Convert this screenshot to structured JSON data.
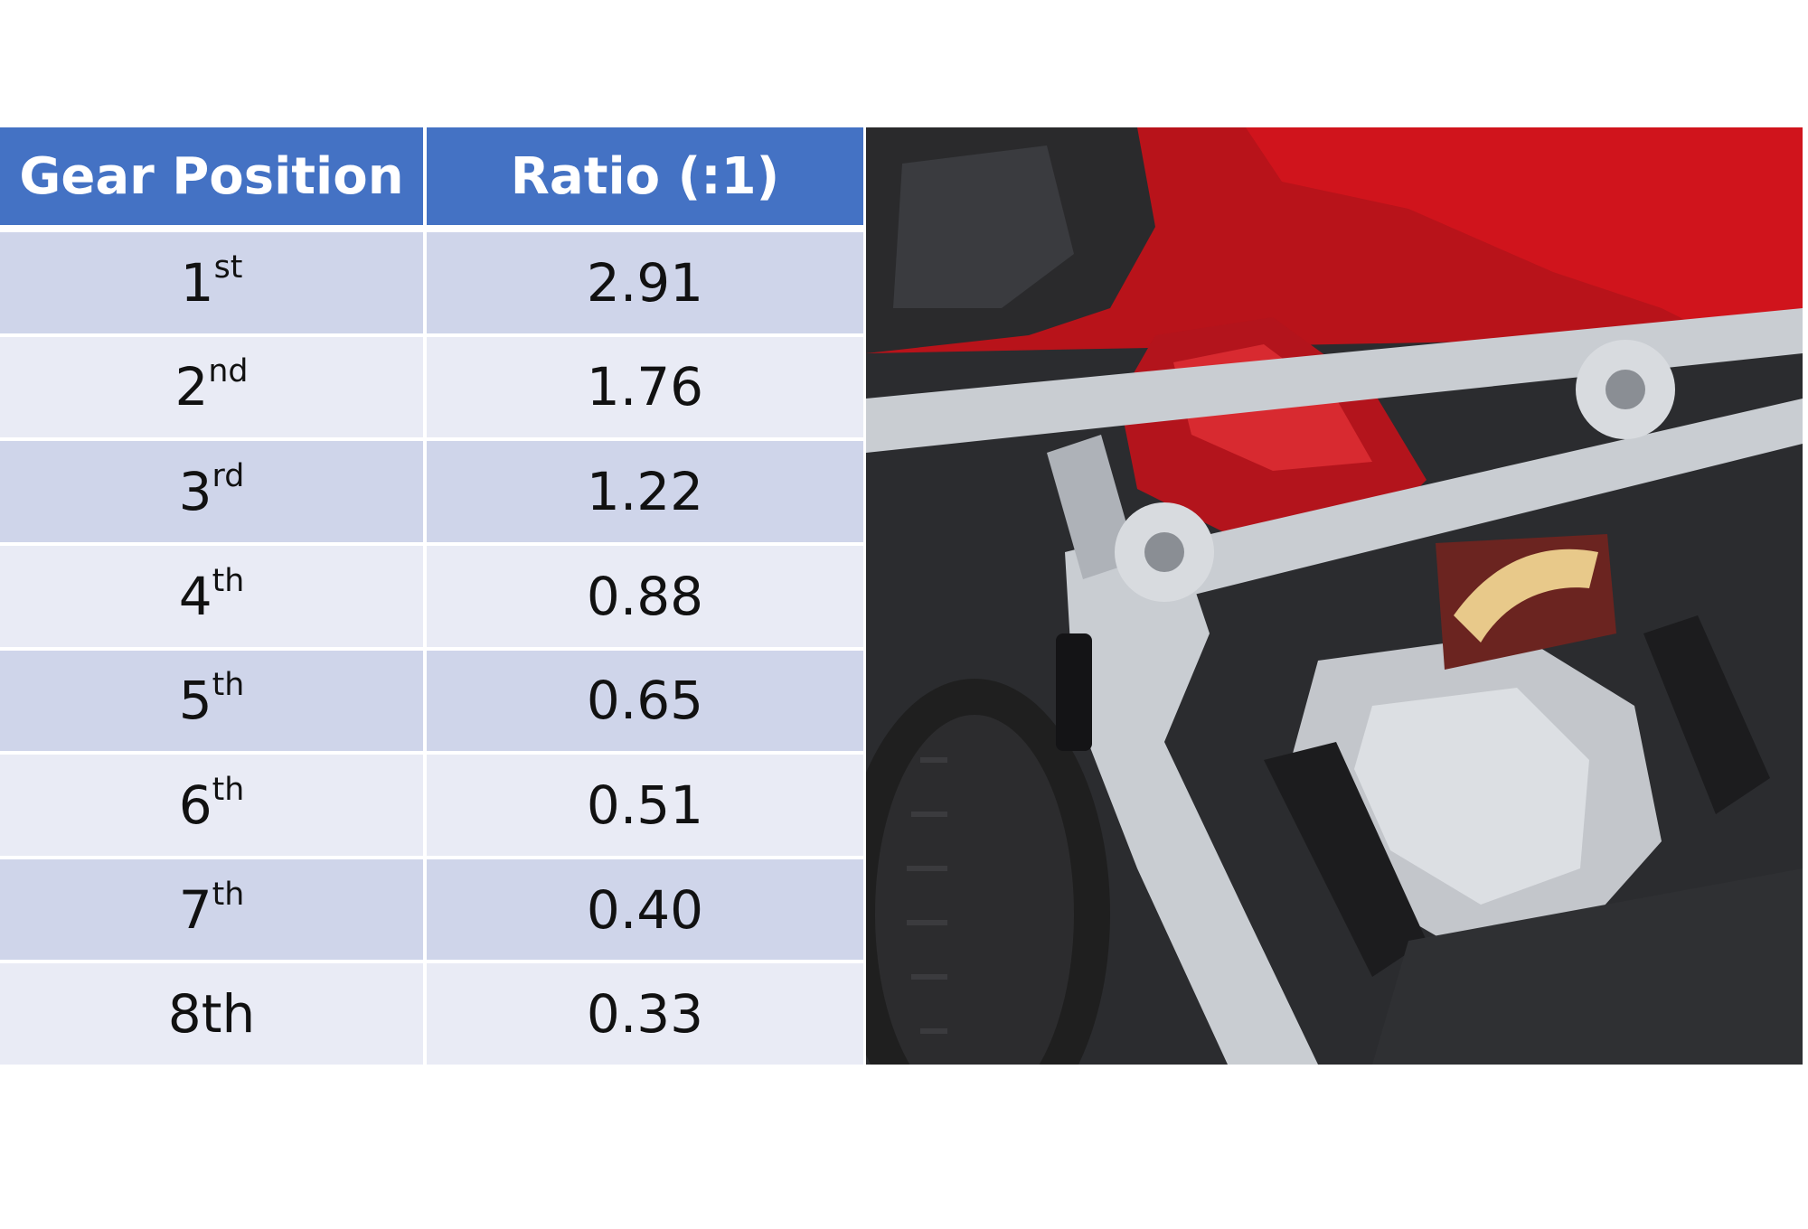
{
  "table": {
    "headers": [
      "Gear Position",
      "Ratio (:1)"
    ],
    "rows": [
      {
        "gear_num": "1",
        "gear_suffix": "st",
        "ratio": "2.91"
      },
      {
        "gear_num": "2",
        "gear_suffix": "nd",
        "ratio": "1.76"
      },
      {
        "gear_num": "3",
        "gear_suffix": "rd",
        "ratio": "1.22"
      },
      {
        "gear_num": "4",
        "gear_suffix": "th",
        "ratio": "0.88"
      },
      {
        "gear_num": "5",
        "gear_suffix": "th",
        "ratio": "0.65"
      },
      {
        "gear_num": "6",
        "gear_suffix": "th",
        "ratio": "0.51"
      },
      {
        "gear_num": "7",
        "gear_suffix": "th",
        "ratio": "0.40"
      },
      {
        "gear_num": "8th",
        "gear_suffix": "",
        "ratio": "0.33"
      }
    ]
  },
  "photo": {
    "icon": "engine-chassis-photo",
    "colors": {
      "carpet": "#b8131a",
      "body_red": "#d0141c",
      "aluminum": "#c9cdd2",
      "engine_cover": "#b3141c",
      "tire": "#1f1f1f",
      "dark": "#2a2a2c"
    }
  }
}
